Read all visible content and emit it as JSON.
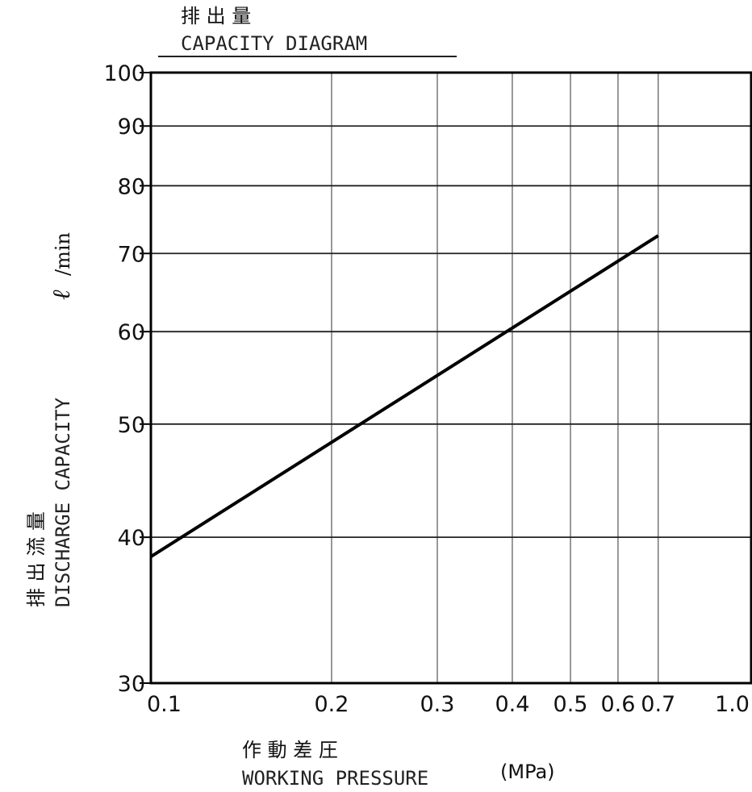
{
  "chart_data": {
    "type": "line",
    "title_jp": "排 出 量",
    "title": "CAPACITY DIAGRAM",
    "xlabel_jp": "作 動 差 圧",
    "xlabel": "WORKING PRESSURE",
    "xunit": "(MPa)",
    "ylabel_jp": "排 出 流 量",
    "ylabel": "DISCHARGE CAPACITY",
    "yunit_symbol": "ℓ",
    "yunit": "/min",
    "xscale": "log",
    "yscale": "log",
    "xlim": [
      0.1,
      1.0
    ],
    "ylim": [
      30,
      100
    ],
    "xticks": [
      0.1,
      0.2,
      0.3,
      0.4,
      0.5,
      0.6,
      0.7,
      1.0
    ],
    "xtick_labels": [
      "0.1",
      "0.2",
      "0.3",
      "0.4",
      "0.5",
      "0.6",
      "0.7",
      "1.0"
    ],
    "yticks": [
      30,
      40,
      50,
      60,
      70,
      80,
      90,
      100
    ],
    "ytick_labels": [
      "30",
      "40",
      "50",
      "60",
      "70",
      "80",
      "90",
      "100"
    ],
    "grid": true,
    "series": [
      {
        "x": [
          0.1,
          0.7
        ],
        "y": [
          38.5,
          72.5
        ]
      }
    ]
  }
}
